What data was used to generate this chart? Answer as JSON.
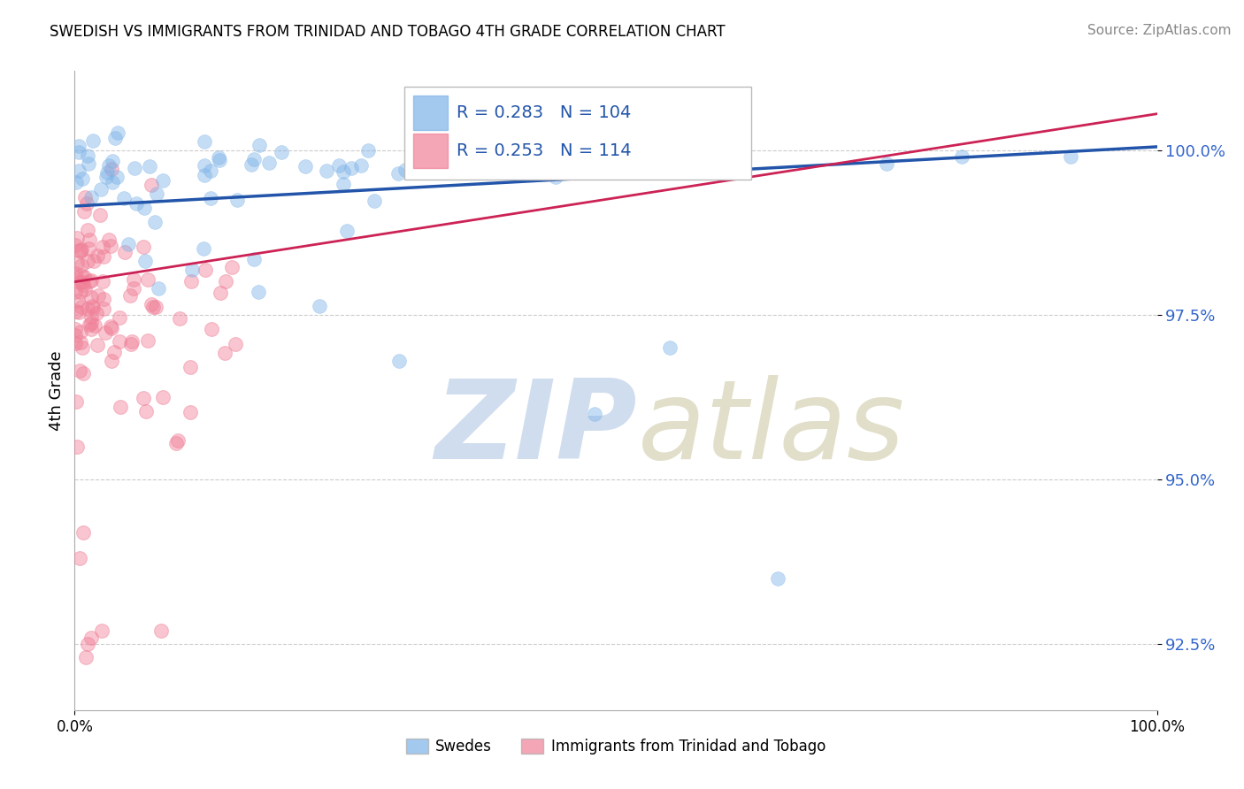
{
  "title": "SWEDISH VS IMMIGRANTS FROM TRINIDAD AND TOBAGO 4TH GRADE CORRELATION CHART",
  "source": "Source: ZipAtlas.com",
  "ylabel": "4th Grade",
  "xmin": 0.0,
  "xmax": 100.0,
  "ymin": 91.5,
  "ymax": 101.2,
  "yticks": [
    92.5,
    95.0,
    97.5,
    100.0
  ],
  "ytick_labels": [
    "92.5%",
    "95.0%",
    "97.5%",
    "100.0%"
  ],
  "swedes_R": 0.283,
  "swedes_N": 104,
  "immigrants_R": 0.253,
  "immigrants_N": 114,
  "blue_color": "#7EB3E8",
  "pink_color": "#F08098",
  "blue_line_color": "#2255AA",
  "pink_line_color": "#CC2255",
  "legend_label_blue": "Swedes",
  "legend_label_pink": "Immigrants from Trinidad and Tobago",
  "background_color": "#FFFFFF",
  "grid_color": "#CCCCCC",
  "blue_trend_x0": 0,
  "blue_trend_y0": 99.15,
  "blue_trend_x1": 100,
  "blue_trend_y1": 100.05,
  "pink_trend_x0": 0,
  "pink_trend_y0": 98.0,
  "pink_trend_x1": 100,
  "pink_trend_y1": 100.55
}
